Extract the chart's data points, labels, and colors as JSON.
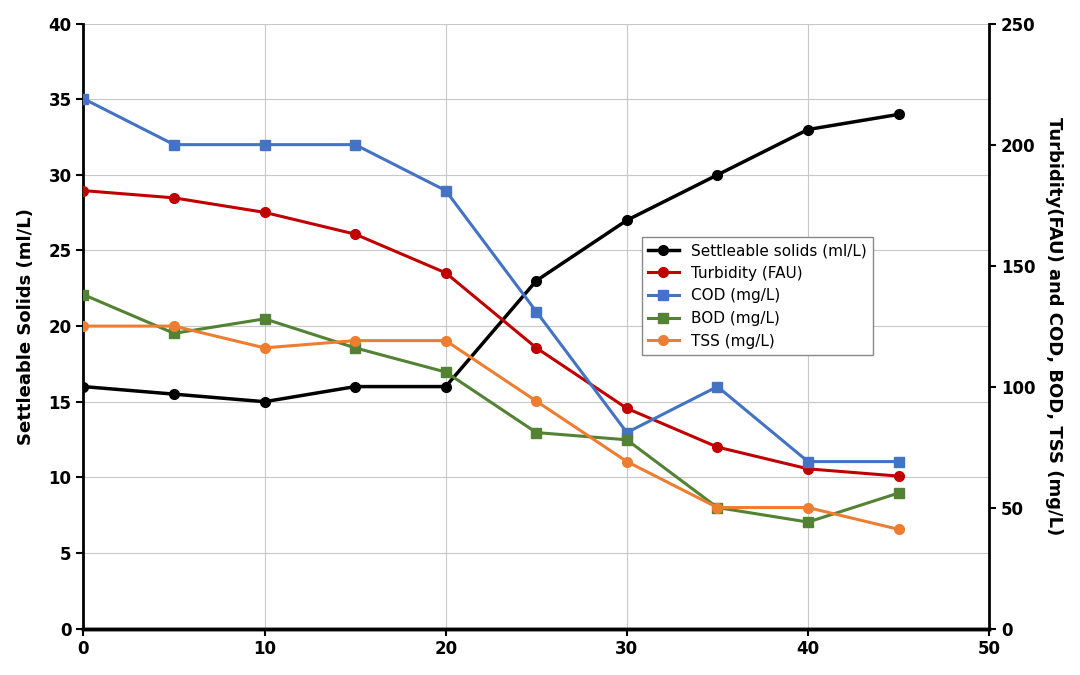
{
  "x": [
    0,
    5,
    10,
    15,
    20,
    25,
    30,
    35,
    40,
    45
  ],
  "settleable_solids": [
    16,
    15.5,
    15,
    16,
    16,
    23,
    27,
    30,
    33,
    34
  ],
  "turbidity": [
    181,
    178,
    172,
    163,
    147,
    116,
    91,
    75,
    66,
    63
  ],
  "cod": [
    219,
    200,
    200,
    200,
    181,
    131,
    81,
    100,
    69,
    69
  ],
  "bod": [
    138,
    122,
    128,
    116,
    106,
    81,
    78,
    50,
    44,
    56
  ],
  "tss": [
    125,
    125,
    116,
    119,
    119,
    94,
    69,
    50,
    50,
    41
  ],
  "settleable_color": "#000000",
  "turbidity_color": "#c00000",
  "cod_color": "#4472c4",
  "bod_color": "#548235",
  "tss_color": "#ed7d31",
  "left_ylabel": "Settleable Solids (ml/L)",
  "right_ylabel": "Turbidity(FAU) and COD, BOD, TSS (mg/L)",
  "left_ylim": [
    0,
    40
  ],
  "right_ylim": [
    0,
    250
  ],
  "xlim": [
    0,
    50
  ],
  "left_yticks": [
    0,
    5,
    10,
    15,
    20,
    25,
    30,
    35,
    40
  ],
  "right_yticks": [
    0,
    50,
    100,
    150,
    200,
    250
  ],
  "xticks": [
    0,
    10,
    20,
    30,
    40,
    50
  ],
  "legend_labels": [
    "Settleable solids (ml/L)",
    "Turbidity (FAU)",
    "COD (mg/L)",
    "BOD (mg/L)",
    "TSS (mg/L)"
  ],
  "background_color": "#ffffff",
  "grid_color": "#c8c8c8"
}
